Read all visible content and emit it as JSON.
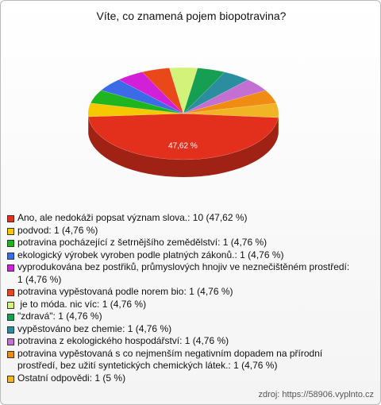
{
  "chart_data": {
    "type": "pie",
    "title": "Víte, co znamená pojem biopotravina?",
    "categories": [
      "Ano, ale nedokáži popsat význam slova.: 10 (47,62 %)",
      "podvod: 1 (4,76 %)",
      "potravina pocházející z šetrnějšího zemědělství: 1 (4,76 %)",
      "ekologický výrobek vyroben podle platných zákonů.: 1 (4,76 %)",
      "vyprodukována bez postřiků, průmyslových hnojiv ve neznečištěném prostředí: 1 (4,76 %)",
      "potravina vypěstovaná podle norem bio: 1 (4,76 %)",
      " je to móda. nic víc: 1 (4,76 %)",
      "\"zdravá\": 1 (4,76 %)",
      "vypěstováno bez chemie: 1 (4,76 %)",
      "potravina z ekologického hospodářství: 1 (4,76 %)",
      "potravina vypěstovaná s co nejmenším negativním dopadem na přírodní prostředí, bez užití syntetických chemických látek.: 1 (4,76 %)",
      "Ostatní odpovědi: 1 (5 %)"
    ],
    "values": [
      47.62,
      4.76,
      4.76,
      4.76,
      4.76,
      4.76,
      4.76,
      4.76,
      4.76,
      4.76,
      4.76,
      5
    ],
    "value_labels": [
      "47,62 %",
      null,
      null,
      null,
      null,
      null,
      null,
      null,
      null,
      null,
      null,
      null
    ],
    "colors": [
      "#e3301c",
      "#f5c800",
      "#1fb51f",
      "#3b6be6",
      "#d21fd8",
      "#e8481a",
      "#d2f27a",
      "#169e52",
      "#2a8e9e",
      "#c46fd2",
      "#f08c12",
      "#f0b424"
    ],
    "source": "zdroj: https://58906.vyplnto.cz"
  }
}
